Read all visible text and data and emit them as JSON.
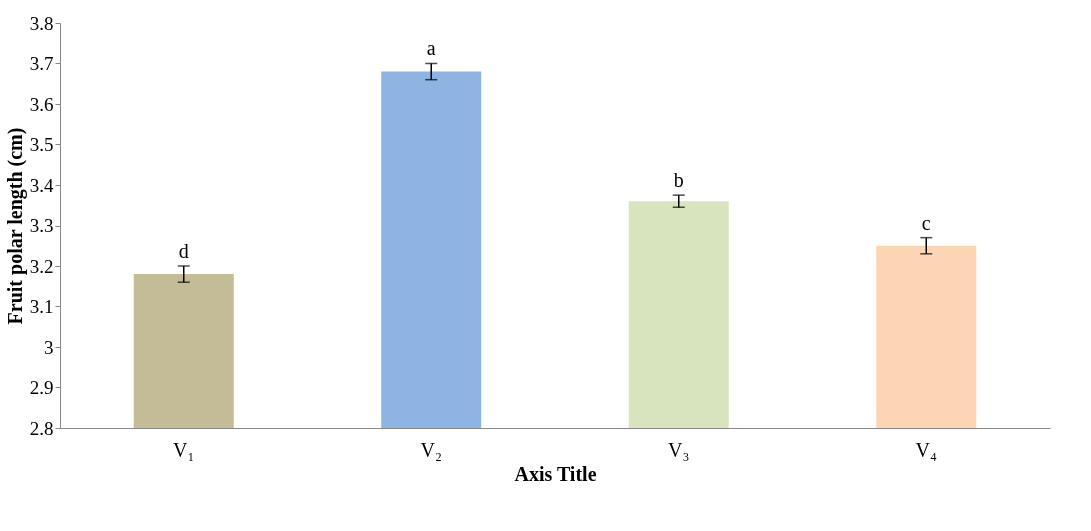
{
  "chart_data": {
    "type": "bar",
    "xlabel": "Axis Title",
    "ylabel": "Fruit polar length (cm)",
    "categories": [
      "V₁",
      "V₂",
      "V₃",
      "V₄"
    ],
    "values": [
      3.18,
      3.68,
      3.36,
      3.25
    ],
    "errors": [
      0.02,
      0.02,
      0.015,
      0.02
    ],
    "colors": [
      "#c4bc96",
      "#8eb4e3",
      "#d7e4bd",
      "#fcd5b5"
    ],
    "ylim": [
      2.8,
      3.8
    ],
    "yticks": [
      2.8,
      2.9,
      3,
      3.1,
      3.2,
      3.3,
      3.4,
      3.5,
      3.6,
      3.7,
      3.8
    ],
    "grid": false,
    "annotations": [
      {
        "text": "d",
        "x": "V₁",
        "y": 3.21
      },
      {
        "text": "a",
        "x": "V₂",
        "y": 3.71
      },
      {
        "text": "b",
        "x": "V₃",
        "y": 3.385
      },
      {
        "text": "c",
        "x": "V₄",
        "y": 3.28
      }
    ]
  }
}
